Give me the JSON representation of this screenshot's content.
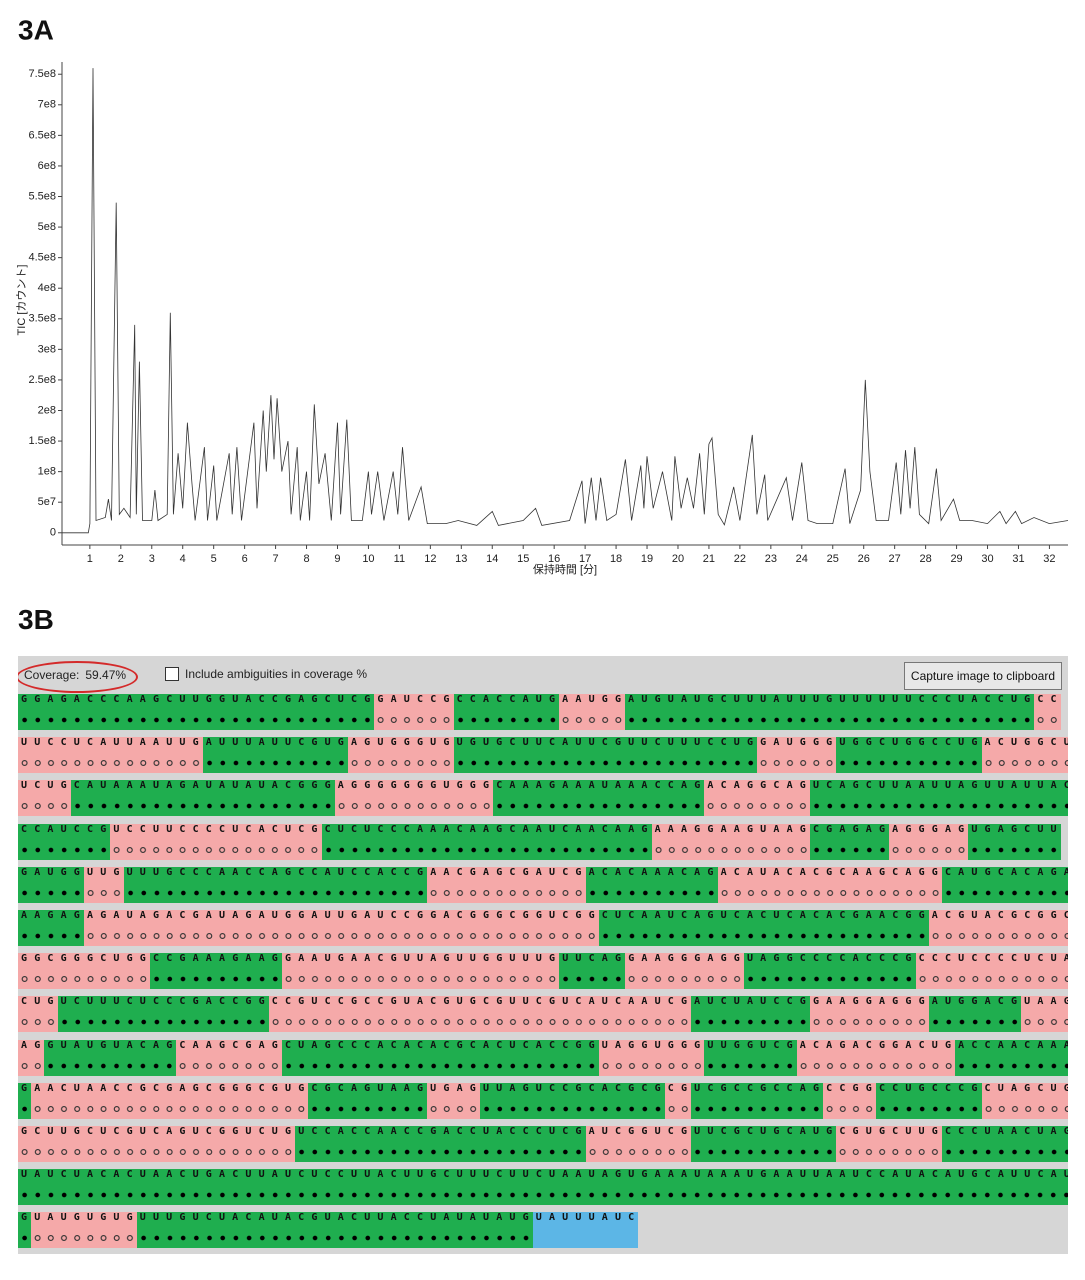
{
  "chart_data": {
    "type": "line",
    "title": "3A",
    "xlabel": "保持時間 [分]",
    "ylabel": "TIC [カウント]",
    "color": "#333333",
    "x": [
      0.1,
      0.95,
      1.0,
      1.1,
      1.2,
      1.5,
      1.6,
      1.7,
      1.85,
      1.95,
      2.1,
      2.3,
      2.45,
      2.5,
      2.6,
      2.7,
      3.0,
      3.1,
      3.2,
      3.5,
      3.6,
      3.7,
      3.85,
      4.0,
      4.15,
      4.3,
      4.4,
      4.7,
      4.8,
      5.0,
      5.1,
      5.5,
      5.6,
      5.75,
      5.9,
      6.3,
      6.4,
      6.6,
      6.7,
      6.85,
      6.95,
      7.05,
      7.2,
      7.4,
      7.5,
      7.7,
      7.8,
      8.0,
      8.1,
      8.25,
      8.4,
      8.6,
      8.8,
      9.0,
      9.1,
      9.3,
      9.45,
      9.8,
      10.0,
      10.1,
      10.3,
      10.5,
      10.8,
      10.95,
      11.1,
      11.3,
      11.7,
      11.9,
      12.5,
      12.9,
      13.5,
      14.0,
      14.2,
      15.0,
      15.4,
      15.6,
      16.5,
      16.9,
      17.0,
      17.2,
      17.35,
      17.5,
      17.7,
      18.0,
      18.3,
      18.5,
      18.8,
      18.9,
      19.0,
      19.2,
      19.5,
      19.8,
      19.9,
      20.1,
      20.3,
      20.5,
      20.7,
      20.85,
      21.0,
      21.1,
      21.3,
      21.5,
      21.8,
      22.0,
      22.4,
      22.55,
      22.8,
      22.9,
      23.5,
      23.7,
      24.0,
      24.2,
      24.5,
      25.0,
      25.4,
      25.55,
      25.9,
      26.05,
      26.2,
      26.4,
      26.8,
      27.05,
      27.2,
      27.35,
      27.5,
      27.65,
      27.8,
      28.1,
      28.35,
      28.5,
      28.9,
      29.1,
      29.5,
      30.0,
      30.4,
      30.6,
      30.9,
      31.1,
      31.5,
      32.0,
      32.6
    ],
    "values": [
      0,
      0,
      15000000.0,
      760000000.0,
      20000000.0,
      25000000.0,
      55000000.0,
      20000000.0,
      540000000.0,
      30000000.0,
      40000000.0,
      25000000.0,
      340000000.0,
      30000000.0,
      280000000.0,
      20000000.0,
      20000000.0,
      70000000.0,
      20000000.0,
      30000000.0,
      360000000.0,
      30000000.0,
      130000000.0,
      40000000.0,
      180000000.0,
      80000000.0,
      20000000.0,
      140000000.0,
      20000000.0,
      110000000.0,
      20000000.0,
      130000000.0,
      30000000.0,
      140000000.0,
      20000000.0,
      180000000.0,
      40000000.0,
      200000000.0,
      100000000.0,
      225000000.0,
      120000000.0,
      220000000.0,
      100000000.0,
      150000000.0,
      30000000.0,
      140000000.0,
      20000000.0,
      100000000.0,
      20000000.0,
      210000000.0,
      80000000.0,
      130000000.0,
      20000000.0,
      180000000.0,
      30000000.0,
      185000000.0,
      20000000.0,
      20000000.0,
      100000000.0,
      30000000.0,
      100000000.0,
      20000000.0,
      100000000.0,
      30000000.0,
      140000000.0,
      20000000.0,
      75000000.0,
      15000000.0,
      15000000.0,
      20000000.0,
      12000000.0,
      35000000.0,
      12000000.0,
      20000000.0,
      40000000.0,
      12000000.0,
      20000000.0,
      85000000.0,
      15000000.0,
      90000000.0,
      20000000.0,
      90000000.0,
      20000000.0,
      30000000.0,
      120000000.0,
      20000000.0,
      110000000.0,
      40000000.0,
      125000000.0,
      40000000.0,
      100000000.0,
      20000000.0,
      125000000.0,
      40000000.0,
      90000000.0,
      40000000.0,
      130000000.0,
      30000000.0,
      145000000.0,
      155000000.0,
      30000000.0,
      13000000.0,
      75000000.0,
      20000000.0,
      160000000.0,
      30000000.0,
      95000000.0,
      20000000.0,
      90000000.0,
      20000000.0,
      115000000.0,
      20000000.0,
      15000000.0,
      15000000.0,
      105000000.0,
      15000000.0,
      70000000.0,
      250000000.0,
      100000000.0,
      20000000.0,
      20000000.0,
      115000000.0,
      30000000.0,
      135000000.0,
      40000000.0,
      140000000.0,
      30000000.0,
      15000000.0,
      105000000.0,
      20000000.0,
      55000000.0,
      20000000.0,
      20000000.0,
      15000000.0,
      35000000.0,
      15000000.0,
      35000000.0,
      15000000.0,
      25000000.0,
      15000000.0,
      20000000.0
    ],
    "xlim": [
      0.1,
      32.6
    ],
    "ylim": [
      -20000000.0,
      770000000.0
    ],
    "xticks": [
      1,
      2,
      3,
      4,
      5,
      6,
      7,
      8,
      9,
      10,
      11,
      12,
      13,
      14,
      15,
      16,
      17,
      18,
      19,
      20,
      21,
      22,
      23,
      24,
      25,
      26,
      27,
      28,
      29,
      30,
      31,
      32
    ],
    "yticks": [
      0,
      {
        "value": 50000000.0,
        "label": "5e7"
      },
      {
        "value": 100000000.0,
        "label": "1e8"
      },
      {
        "value": 150000000.0,
        "label": "1.5e8"
      },
      {
        "value": 200000000.0,
        "label": "2e8"
      },
      {
        "value": 250000000.0,
        "label": "2.5e8"
      },
      {
        "value": 300000000.0,
        "label": "3e8"
      },
      {
        "value": 350000000.0,
        "label": "3.5e8"
      },
      {
        "value": 400000000.0,
        "label": "4e8"
      },
      {
        "value": 450000000.0,
        "label": "4.5e8"
      },
      {
        "value": 500000000.0,
        "label": "5e8"
      },
      {
        "value": 550000000.0,
        "label": "5.5e8"
      },
      {
        "value": 600000000.0,
        "label": "6e8"
      },
      {
        "value": 650000000.0,
        "label": "6.5e8"
      },
      {
        "value": 700000000.0,
        "label": "7e8"
      },
      {
        "value": 750000000.0,
        "label": "7.5e8"
      }
    ]
  },
  "panel": {
    "title": "3B",
    "coverage_label": "Coverage:",
    "coverage_value": "59.47%",
    "checkbox_label": "Include ambiguities in coverage %",
    "button": "Capture image to clipboard",
    "colors": {
      "covered": "#1fae4f",
      "uncovered": "#f5a9a9",
      "ambiguous": "#5cb6e6"
    },
    "rows": [
      [
        {
          "seq": "GGAGACCCAAGCUUGGUACCGAGCUCG",
          "coverage": "covered"
        },
        {
          "seq": "GAUCCG",
          "coverage": "uncovered"
        },
        {
          "seq": "CCACCAUG",
          "coverage": "covered"
        },
        {
          "seq": "AAUGG",
          "coverage": "uncovered"
        },
        {
          "seq": "AUGUAUGCUUUAUUUGUUUUUUCCCUACCUG",
          "coverage": "covered"
        },
        {
          "seq": "CC",
          "coverage": "uncovered"
        }
      ],
      [
        {
          "seq": "UUCCUCAUUAAUUG",
          "coverage": "uncovered"
        },
        {
          "seq": "AUUUAUUCGUG",
          "coverage": "covered"
        },
        {
          "seq": "AGUGGGUG",
          "coverage": "uncovered"
        },
        {
          "seq": "UGUGCUUCAUUCGUUCUUUCCUG",
          "coverage": "covered"
        },
        {
          "seq": "GAUGGG",
          "coverage": "uncovered"
        },
        {
          "seq": "UGGCUGGCCUG",
          "coverage": "covered"
        },
        {
          "seq": "ACUGGCUG",
          "coverage": "uncovered"
        }
      ],
      [
        {
          "seq": "UCUG",
          "coverage": "uncovered"
        },
        {
          "seq": "CAUAAAUAGAUAUAUACGGG",
          "coverage": "covered"
        },
        {
          "seq": "AGGGGGGGUGGG",
          "coverage": "uncovered"
        },
        {
          "seq": "CAAAGAAAUAAACCAG",
          "coverage": "covered"
        },
        {
          "seq": "ACAGGCAG",
          "coverage": "uncovered"
        },
        {
          "seq": "UCAGCUUAAUUAGUUAUUACU",
          "coverage": "covered"
        }
      ],
      [
        {
          "seq": "CCAUCCG",
          "coverage": "covered"
        },
        {
          "seq": "UCCUUCCCCUCACUCG",
          "coverage": "uncovered"
        },
        {
          "seq": "CUCUCCCAAACAAGCAAUCAACAAG",
          "coverage": "covered"
        },
        {
          "seq": "AAAGGAAGUAAG",
          "coverage": "uncovered"
        },
        {
          "seq": "CGAGAG",
          "coverage": "covered"
        },
        {
          "seq": "AGGGAG",
          "coverage": "uncovered"
        },
        {
          "seq": "UGAGCUU",
          "coverage": "covered"
        }
      ],
      [
        {
          "seq": "GAUGG",
          "coverage": "covered"
        },
        {
          "seq": "UUG",
          "coverage": "uncovered"
        },
        {
          "seq": "UUUGCCCAACCAGCCAUCCACCG",
          "coverage": "covered"
        },
        {
          "seq": "AACGAGCGAUCG",
          "coverage": "uncovered"
        },
        {
          "seq": "ACACAAACAG",
          "coverage": "covered"
        },
        {
          "seq": "ACAUACACGCAAGCAGG",
          "coverage": "uncovered"
        },
        {
          "seq": "CAUGCACAGA",
          "coverage": "covered"
        }
      ],
      [
        {
          "seq": "AAGAG",
          "coverage": "covered"
        },
        {
          "seq": "AGAUAGACGAUAGAUGGAUUGAUCCGGACGGGCGGUCGG",
          "coverage": "uncovered"
        },
        {
          "seq": "CUCAAUCAGUCACUCACACGAACGG",
          "coverage": "covered"
        },
        {
          "seq": "ACGUACGCGGCA",
          "coverage": "uncovered"
        }
      ],
      [
        {
          "seq": "GGCGGGCUGG",
          "coverage": "uncovered"
        },
        {
          "seq": "CCGAAAGAAG",
          "coverage": "covered"
        },
        {
          "seq": "GAAUGAACGUUAGUUGGUUUG",
          "coverage": "uncovered"
        },
        {
          "seq": "UUCAG",
          "coverage": "covered"
        },
        {
          "seq": "GAAGGGAGG",
          "coverage": "uncovered"
        },
        {
          "seq": "UAGGCCCCACCCG",
          "coverage": "covered"
        },
        {
          "seq": "CCCUCCCCUCUAU",
          "coverage": "uncovered"
        }
      ],
      [
        {
          "seq": "CUG",
          "coverage": "uncovered"
        },
        {
          "seq": "UCUUUCUCCCGACCGG",
          "coverage": "covered"
        },
        {
          "seq": "CCGUCCGCCGUACGUGCGUUCGUCAUCAAUCG",
          "coverage": "uncovered"
        },
        {
          "seq": "AUCUAUCCG",
          "coverage": "covered"
        },
        {
          "seq": "GAAGGAGGG",
          "coverage": "uncovered"
        },
        {
          "seq": "AUGGACG",
          "coverage": "covered"
        },
        {
          "seq": "UAAGU",
          "coverage": "uncovered"
        }
      ],
      [
        {
          "seq": "AG",
          "coverage": "uncovered"
        },
        {
          "seq": "GUAUGUACAG",
          "coverage": "covered"
        },
        {
          "seq": "CAAGCGAG",
          "coverage": "uncovered"
        },
        {
          "seq": "CUAGCCCACACACGCACUCACCGG",
          "coverage": "covered"
        },
        {
          "seq": "UAGGUGGG",
          "coverage": "uncovered"
        },
        {
          "seq": "UUGGUCG",
          "coverage": "covered"
        },
        {
          "seq": "ACAGACGGACUG",
          "coverage": "uncovered"
        },
        {
          "seq": "ACCAACAAAC",
          "coverage": "covered"
        }
      ],
      [
        {
          "seq": "G",
          "coverage": "covered"
        },
        {
          "seq": "AACUAACCGCGAGCGGGCGUG",
          "coverage": "uncovered"
        },
        {
          "seq": "CGCAGUAAG",
          "coverage": "covered"
        },
        {
          "seq": "UGAG",
          "coverage": "uncovered"
        },
        {
          "seq": "UUAGUCCGCACGCG",
          "coverage": "covered"
        },
        {
          "seq": "CG",
          "coverage": "uncovered"
        },
        {
          "seq": "UCGCCGCCAG",
          "coverage": "covered"
        },
        {
          "seq": "CCGG",
          "coverage": "uncovered"
        },
        {
          "seq": "CCUGCCCG",
          "coverage": "covered"
        },
        {
          "seq": "CUAGCUG",
          "coverage": "uncovered"
        }
      ],
      [
        {
          "seq": "GCUUGCUCGUCAGUCGGUCUG",
          "coverage": "uncovered"
        },
        {
          "seq": "UCCACCAACCGACCUACCCUCG",
          "coverage": "covered"
        },
        {
          "seq": "AUCGGUCG",
          "coverage": "uncovered"
        },
        {
          "seq": "UUCGCUGCAUG",
          "coverage": "covered"
        },
        {
          "seq": "CGUGCUUG",
          "coverage": "uncovered"
        },
        {
          "seq": "CCCUAACUAGC",
          "coverage": "covered"
        }
      ],
      [
        {
          "seq": "UAUCUACACUAACUGACUUAUCUCCUUACUUGCUUUCUUCUAAUAGUGAAAUAAAUGAAUUAAUCCAUACAUGCAUUCAUCU",
          "coverage": "covered"
        }
      ],
      [
        {
          "seq": "G",
          "coverage": "covered"
        },
        {
          "seq": "UAUGUGUG",
          "coverage": "uncovered"
        },
        {
          "seq": "UUUGUCUACAUACGUACUUACCUAUAUAUG",
          "coverage": "covered"
        },
        {
          "seq": "UAUUUAUC",
          "coverage": "ambiguous"
        }
      ]
    ]
  }
}
